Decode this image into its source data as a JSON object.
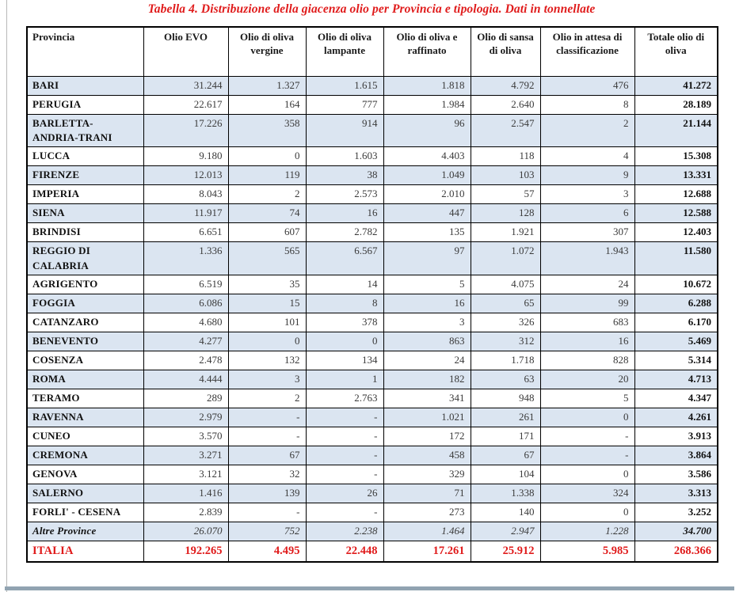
{
  "title": "Tabella 4. Distribuzione della giacenza olio per Provincia e tipologia. Dati in tonnellate",
  "colors": {
    "row_shading": "#dbe5f1",
    "accent_red": "#e01b1b"
  },
  "table": {
    "columns": [
      "Provincia",
      "Olio EVO",
      "Olio di oliva vergine",
      "Olio di oliva lampante",
      "Olio di oliva e raffinato",
      "Olio di sansa di oliva",
      "Olio in attesa di classificazione",
      "Totale olio di oliva"
    ],
    "rows": [
      {
        "name": "BARI",
        "kind": "province",
        "values": [
          "31.244",
          "1.327",
          "1.615",
          "1.818",
          "4.792",
          "476",
          "41.272"
        ]
      },
      {
        "name": "PERUGIA",
        "kind": "province",
        "values": [
          "22.617",
          "164",
          "777",
          "1.984",
          "2.640",
          "8",
          "28.189"
        ]
      },
      {
        "name": "BARLETTA-ANDRIA-TRANI",
        "kind": "province",
        "values": [
          "17.226",
          "358",
          "914",
          "96",
          "2.547",
          "2",
          "21.144"
        ]
      },
      {
        "name": "LUCCA",
        "kind": "province",
        "values": [
          "9.180",
          "0",
          "1.603",
          "4.403",
          "118",
          "4",
          "15.308"
        ]
      },
      {
        "name": "FIRENZE",
        "kind": "province",
        "values": [
          "12.013",
          "119",
          "38",
          "1.049",
          "103",
          "9",
          "13.331"
        ]
      },
      {
        "name": "IMPERIA",
        "kind": "province",
        "values": [
          "8.043",
          "2",
          "2.573",
          "2.010",
          "57",
          "3",
          "12.688"
        ]
      },
      {
        "name": "SIENA",
        "kind": "province",
        "values": [
          "11.917",
          "74",
          "16",
          "447",
          "128",
          "6",
          "12.588"
        ]
      },
      {
        "name": "BRINDISI",
        "kind": "province",
        "values": [
          "6.651",
          "607",
          "2.782",
          "135",
          "1.921",
          "307",
          "12.403"
        ]
      },
      {
        "name": "REGGIO DI CALABRIA",
        "kind": "province",
        "values": [
          "1.336",
          "565",
          "6.567",
          "97",
          "1.072",
          "1.943",
          "11.580"
        ]
      },
      {
        "name": "AGRIGENTO",
        "kind": "province",
        "values": [
          "6.519",
          "35",
          "14",
          "5",
          "4.075",
          "24",
          "10.672"
        ]
      },
      {
        "name": "FOGGIA",
        "kind": "province",
        "values": [
          "6.086",
          "15",
          "8",
          "16",
          "65",
          "99",
          "6.288"
        ]
      },
      {
        "name": "CATANZARO",
        "kind": "province",
        "values": [
          "4.680",
          "101",
          "378",
          "3",
          "326",
          "683",
          "6.170"
        ]
      },
      {
        "name": "BENEVENTO",
        "kind": "province",
        "values": [
          "4.277",
          "0",
          "0",
          "863",
          "312",
          "16",
          "5.469"
        ]
      },
      {
        "name": "COSENZA",
        "kind": "province",
        "values": [
          "2.478",
          "132",
          "134",
          "24",
          "1.718",
          "828",
          "5.314"
        ]
      },
      {
        "name": "ROMA",
        "kind": "province",
        "values": [
          "4.444",
          "3",
          "1",
          "182",
          "63",
          "20",
          "4.713"
        ]
      },
      {
        "name": "TERAMO",
        "kind": "province",
        "values": [
          "289",
          "2",
          "2.763",
          "341",
          "948",
          "5",
          "4.347"
        ]
      },
      {
        "name": "RAVENNA",
        "kind": "province",
        "values": [
          "2.979",
          "-",
          "-",
          "1.021",
          "261",
          "0",
          "4.261"
        ]
      },
      {
        "name": "CUNEO",
        "kind": "province",
        "values": [
          "3.570",
          "-",
          "-",
          "172",
          "171",
          "-",
          "3.913"
        ]
      },
      {
        "name": "CREMONA",
        "kind": "province",
        "values": [
          "3.271",
          "67",
          "-",
          "458",
          "67",
          "-",
          "3.864"
        ]
      },
      {
        "name": "GENOVA",
        "kind": "province",
        "values": [
          "3.121",
          "32",
          "-",
          "329",
          "104",
          "0",
          "3.586"
        ]
      },
      {
        "name": "SALERNO",
        "kind": "province",
        "values": [
          "1.416",
          "139",
          "26",
          "71",
          "1.338",
          "324",
          "3.313"
        ]
      },
      {
        "name": "FORLI' - CESENA",
        "kind": "province",
        "values": [
          "2.839",
          "-",
          "-",
          "273",
          "140",
          "0",
          "3.252"
        ]
      },
      {
        "name": "Altre Province",
        "kind": "altre",
        "values": [
          "26.070",
          "752",
          "2.238",
          "1.464",
          "2.947",
          "1.228",
          "34.700"
        ]
      },
      {
        "name": "ITALIA",
        "kind": "italia",
        "values": [
          "192.265",
          "4.495",
          "22.448",
          "17.261",
          "25.912",
          "5.985",
          "268.366"
        ]
      }
    ]
  }
}
